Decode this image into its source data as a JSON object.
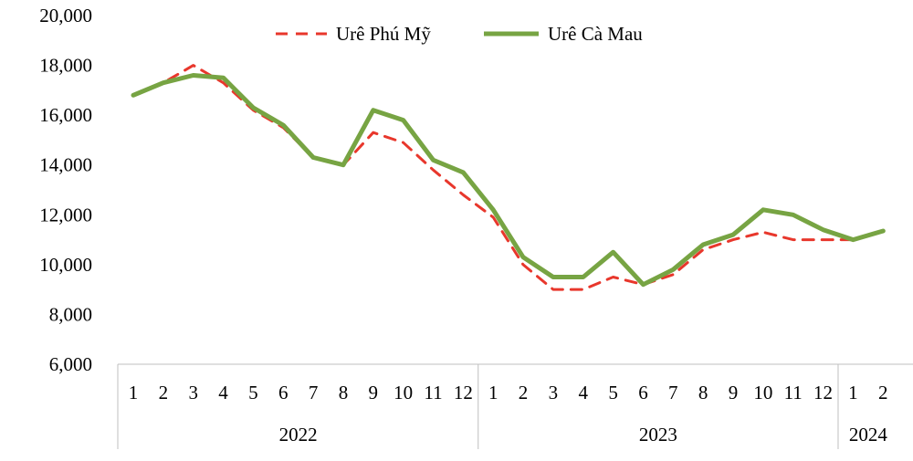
{
  "chart_data": {
    "type": "line",
    "title": "",
    "xlabel": "",
    "ylabel": "",
    "ylim": [
      6000,
      20000
    ],
    "y_ticks": [
      "6,000",
      "8,000",
      "10,000",
      "12,000",
      "14,000",
      "16,000",
      "18,000",
      "20,000"
    ],
    "grid": false,
    "legend_position": "top",
    "categories": [
      "1",
      "2",
      "3",
      "4",
      "5",
      "6",
      "7",
      "8",
      "9",
      "10",
      "11",
      "12",
      "1",
      "2",
      "3",
      "4",
      "5",
      "6",
      "7",
      "8",
      "9",
      "10",
      "11",
      "12",
      "1",
      "2"
    ],
    "year_groups": [
      {
        "label": "2022",
        "count": 12
      },
      {
        "label": "2023",
        "count": 12
      },
      {
        "label": "2024",
        "count": 2
      }
    ],
    "series": [
      {
        "name": "Urê Phú Mỹ",
        "color": "#e8372c",
        "style": "dashed",
        "values": [
          16800,
          17300,
          18000,
          17300,
          16200,
          15500,
          14300,
          14000,
          15300,
          14900,
          13800,
          12800,
          11900,
          10000,
          9000,
          9000,
          9500,
          9200,
          9600,
          10600,
          11000,
          11300,
          11000,
          11000,
          11000,
          11350
        ]
      },
      {
        "name": "Urê Cà Mau",
        "color": "#77a443",
        "style": "solid",
        "values": [
          16800,
          17300,
          17600,
          17500,
          16300,
          15600,
          14300,
          14000,
          16200,
          15800,
          14200,
          13700,
          12200,
          10300,
          9500,
          9500,
          10500,
          9200,
          9800,
          10800,
          11200,
          12200,
          12000,
          11400,
          11000,
          11350
        ]
      }
    ]
  }
}
